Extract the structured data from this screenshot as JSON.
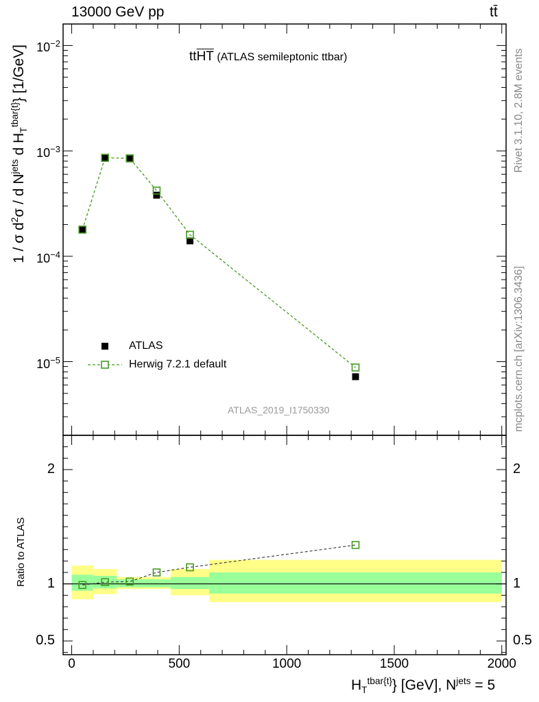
{
  "header": {
    "left": "13000 GeV pp",
    "right": "tt̄"
  },
  "main_title": {
    "prefix": "tt",
    "overline": "HT",
    "suffix": " (ATLAS semileptonic ttbar)"
  },
  "side_labels": {
    "rivet": "Rivet 3.1.10,  2.8M events",
    "mcplots": "mcplots.cern.ch [arXiv:1306.3436]"
  },
  "analysis_id": "ATLAS_2019_I1750330",
  "y_title": {
    "a": "1 / σ d",
    "a_sup": "2",
    "b": "σ / d N",
    "b_sup": "jets",
    "c": " d H",
    "c_sub": "T",
    "c_sup": "tbar{t}",
    "d": "} [1/GeV]"
  },
  "x_title": {
    "a": "H",
    "a_sub": "T",
    "a_sup": "tbar{t}",
    "b": "} [GeV], N",
    "b_sup": "jets",
    "c": " = 5"
  },
  "ratio_title": "Ratio to ATLAS",
  "legend": [
    {
      "label": "ATLAS",
      "color": "#000000"
    },
    {
      "label": "Herwig 7.2.1 default",
      "color": "#449922"
    }
  ],
  "chart_data": {
    "type": "scatter",
    "x_range": [
      -40,
      2020
    ],
    "main_y_log_range": [
      2e-06,
      0.016
    ],
    "ratio_y_range": [
      0.38,
      2.3
    ],
    "x_ticks": [
      0,
      500,
      1000,
      1500,
      2000
    ],
    "x_tick_labels": [
      "0",
      "500",
      "1000",
      "1500",
      "2000"
    ],
    "main_y_ticks": [
      1e-05,
      0.0001,
      0.001,
      0.01
    ],
    "main_y_tick_labels": [
      {
        "base": "10",
        "exp": "−5"
      },
      {
        "base": "10",
        "exp": "−4"
      },
      {
        "base": "10",
        "exp": "−3"
      },
      {
        "base": "10",
        "exp": "−2"
      }
    ],
    "ratio_y_ticks": [
      0.5,
      1,
      2
    ],
    "ratio_y_tick_labels": [
      "0.5",
      "1",
      "2"
    ],
    "bins": [
      {
        "lo": 0,
        "hi": 100,
        "inner_band": [
          0.94,
          1.08
        ],
        "outer_band": [
          0.865,
          1.16
        ]
      },
      {
        "lo": 100,
        "hi": 210,
        "inner_band": [
          0.96,
          1.07
        ],
        "outer_band": [
          0.91,
          1.13
        ]
      },
      {
        "lo": 210,
        "hi": 460,
        "inner_band": [
          0.97,
          1.04
        ],
        "outer_band": [
          0.955,
          1.06
        ]
      },
      {
        "lo": 460,
        "hi": 640,
        "inner_band": [
          0.955,
          1.06
        ],
        "outer_band": [
          0.9,
          1.13
        ]
      },
      {
        "lo": 640,
        "hi": 2000,
        "inner_band": [
          0.915,
          1.1
        ],
        "outer_band": [
          0.84,
          1.21
        ]
      }
    ],
    "series": [
      {
        "name": "ATLAS",
        "x": [
          50,
          155,
          270,
          395,
          550,
          1320
        ],
        "y": [
          0.00018,
          0.00085,
          0.00084,
          0.00038,
          0.00014,
          7.2e-06
        ]
      },
      {
        "name": "Herwig 7.2.1 default",
        "x": [
          50,
          155,
          270,
          395,
          550,
          1320
        ],
        "y": [
          0.000179,
          0.00086,
          0.00085,
          0.00042,
          0.00016,
          8.8e-06
        ],
        "ratio": [
          0.99,
          1.015,
          1.02,
          1.1,
          1.145,
          1.34
        ]
      }
    ]
  }
}
